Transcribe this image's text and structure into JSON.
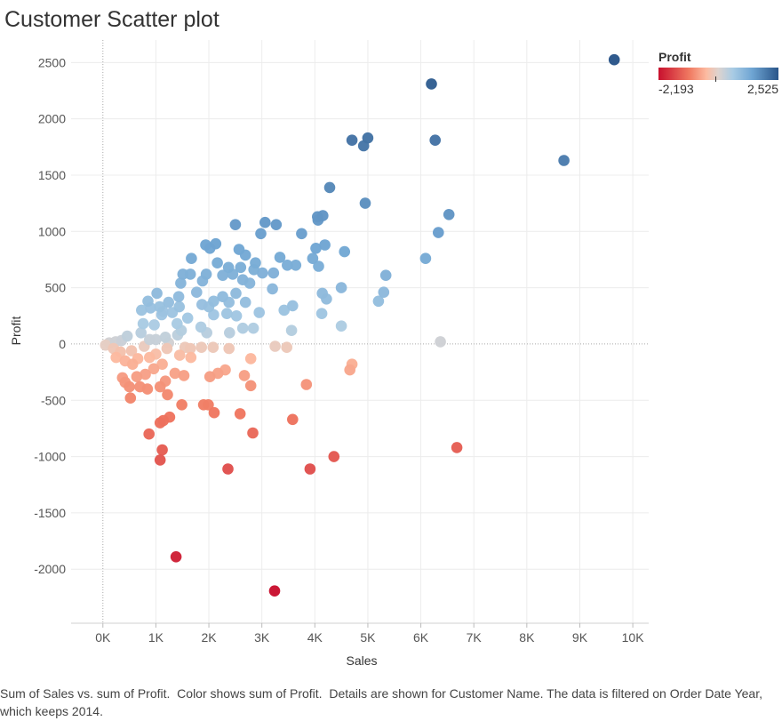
{
  "chart_data": {
    "type": "scatter",
    "title": "Customer Scatter plot",
    "xlabel": "Sales",
    "ylabel": "Profit",
    "xlim": [
      -600,
      10300
    ],
    "ylim": [
      -2480,
      2700
    ],
    "xticks": [
      0,
      1000,
      2000,
      3000,
      4000,
      5000,
      6000,
      7000,
      8000,
      9000,
      10000
    ],
    "xtick_labels": [
      "0K",
      "1K",
      "2K",
      "3K",
      "4K",
      "5K",
      "6K",
      "7K",
      "8K",
      "9K",
      "10K"
    ],
    "yticks": [
      -2000,
      -1500,
      -1000,
      -500,
      0,
      500,
      1000,
      1500,
      2000,
      2500
    ],
    "ytick_labels": [
      "-2000",
      "-1500",
      "-1000",
      "-500",
      "0",
      "500",
      "1000",
      "1500",
      "2000",
      "2500"
    ],
    "grid": true,
    "legend": {
      "title": "Profit",
      "min_label": "-2,193",
      "max_label": "2,525",
      "min": -2193,
      "max": 2525,
      "placement": "top-right",
      "colors": [
        "#c8102e",
        "#f07b62",
        "#fcbba1",
        "#ddd3cf",
        "#a8cbe4",
        "#6fa5d3",
        "#295589"
      ]
    },
    "points": [
      [
        9650,
        2525
      ],
      [
        6200,
        2310
      ],
      [
        6270,
        1810
      ],
      [
        4700,
        1810
      ],
      [
        5000,
        1830
      ],
      [
        4920,
        1760
      ],
      [
        8700,
        1630
      ],
      [
        4280,
        1390
      ],
      [
        4950,
        1250
      ],
      [
        6530,
        1150
      ],
      [
        4150,
        1140
      ],
      [
        4050,
        1130
      ],
      [
        4060,
        1100
      ],
      [
        3060,
        1080
      ],
      [
        3270,
        1060
      ],
      [
        2500,
        1060
      ],
      [
        6330,
        990
      ],
      [
        3750,
        980
      ],
      [
        2980,
        980
      ],
      [
        1940,
        880
      ],
      [
        2130,
        890
      ],
      [
        4190,
        880
      ],
      [
        2020,
        850
      ],
      [
        4020,
        850
      ],
      [
        2570,
        840
      ],
      [
        4560,
        820
      ],
      [
        2690,
        790
      ],
      [
        1670,
        760
      ],
      [
        3340,
        770
      ],
      [
        3960,
        760
      ],
      [
        3640,
        700
      ],
      [
        3480,
        700
      ],
      [
        4070,
        690
      ],
      [
        6090,
        760
      ],
      [
        2880,
        720
      ],
      [
        2160,
        720
      ],
      [
        2370,
        680
      ],
      [
        2600,
        680
      ],
      [
        3010,
        630
      ],
      [
        5340,
        610
      ],
      [
        3220,
        630
      ],
      [
        2450,
        620
      ],
      [
        1950,
        620
      ],
      [
        1510,
        620
      ],
      [
        1650,
        620
      ],
      [
        2260,
        610
      ],
      [
        2850,
        660
      ],
      [
        2640,
        570
      ],
      [
        1880,
        560
      ],
      [
        1470,
        540
      ],
      [
        2770,
        540
      ],
      [
        3200,
        490
      ],
      [
        4500,
        500
      ],
      [
        2510,
        450
      ],
      [
        4140,
        450
      ],
      [
        5300,
        460
      ],
      [
        4220,
        400
      ],
      [
        5200,
        380
      ],
      [
        3580,
        340
      ],
      [
        2090,
        380
      ],
      [
        2690,
        370
      ],
      [
        2380,
        370
      ],
      [
        1430,
        420
      ],
      [
        1770,
        460
      ],
      [
        2260,
        420
      ],
      [
        1020,
        450
      ],
      [
        1870,
        350
      ],
      [
        2000,
        330
      ],
      [
        2950,
        280
      ],
      [
        4130,
        270
      ],
      [
        1240,
        370
      ],
      [
        1070,
        330
      ],
      [
        1310,
        280
      ],
      [
        1130,
        290
      ],
      [
        1440,
        330
      ],
      [
        730,
        300
      ],
      [
        900,
        320
      ],
      [
        850,
        380
      ],
      [
        1400,
        180
      ],
      [
        1600,
        230
      ],
      [
        1110,
        260
      ],
      [
        2090,
        260
      ],
      [
        2340,
        270
      ],
      [
        2520,
        250
      ],
      [
        3420,
        300
      ],
      [
        970,
        170
      ],
      [
        760,
        180
      ],
      [
        1850,
        150
      ],
      [
        1480,
        120
      ],
      [
        2640,
        140
      ],
      [
        2840,
        140
      ],
      [
        3560,
        120
      ],
      [
        4500,
        160
      ],
      [
        2390,
        100
      ],
      [
        1960,
        100
      ],
      [
        1410,
        80
      ],
      [
        1180,
        60
      ],
      [
        880,
        40
      ],
      [
        720,
        100
      ],
      [
        460,
        70
      ],
      [
        350,
        30
      ],
      [
        240,
        20
      ],
      [
        120,
        10
      ],
      [
        50,
        -10
      ],
      [
        200,
        -40
      ],
      [
        330,
        -70
      ],
      [
        540,
        -60
      ],
      [
        780,
        -20
      ],
      [
        1000,
        40
      ],
      [
        1240,
        10
      ],
      [
        1550,
        -30
      ],
      [
        1650,
        -40
      ],
      [
        1860,
        -30
      ],
      [
        2080,
        -30
      ],
      [
        2380,
        -40
      ],
      [
        3250,
        -20
      ],
      [
        3470,
        -30
      ],
      [
        6370,
        20
      ],
      [
        1000,
        -90
      ],
      [
        1210,
        -40
      ],
      [
        660,
        -130
      ],
      [
        880,
        -120
      ],
      [
        420,
        -150
      ],
      [
        250,
        -120
      ],
      [
        560,
        -180
      ],
      [
        1450,
        -100
      ],
      [
        1660,
        -120
      ],
      [
        2790,
        -130
      ],
      [
        370,
        -300
      ],
      [
        420,
        -340
      ],
      [
        640,
        -290
      ],
      [
        800,
        -270
      ],
      [
        960,
        -220
      ],
      [
        1120,
        -180
      ],
      [
        1360,
        -260
      ],
      [
        1530,
        -280
      ],
      [
        1180,
        -330
      ],
      [
        1220,
        -450
      ],
      [
        1080,
        -380
      ],
      [
        2020,
        -290
      ],
      [
        2170,
        -260
      ],
      [
        2310,
        -230
      ],
      [
        2670,
        -280
      ],
      [
        2790,
        -370
      ],
      [
        3840,
        -360
      ],
      [
        4660,
        -230
      ],
      [
        4700,
        -180
      ],
      [
        500,
        -380
      ],
      [
        520,
        -480
      ],
      [
        700,
        -380
      ],
      [
        840,
        -400
      ],
      [
        1490,
        -540
      ],
      [
        1900,
        -540
      ],
      [
        1990,
        -540
      ],
      [
        2100,
        -610
      ],
      [
        2590,
        -620
      ],
      [
        1260,
        -650
      ],
      [
        1140,
        -680
      ],
      [
        1080,
        -700
      ],
      [
        3580,
        -670
      ],
      [
        870,
        -800
      ],
      [
        2830,
        -790
      ],
      [
        1120,
        -940
      ],
      [
        1080,
        -1030
      ],
      [
        4360,
        -1000
      ],
      [
        6680,
        -920
      ],
      [
        2360,
        -1110
      ],
      [
        3910,
        -1110
      ],
      [
        1380,
        -1890
      ],
      [
        3240,
        -2193
      ]
    ]
  }
}
